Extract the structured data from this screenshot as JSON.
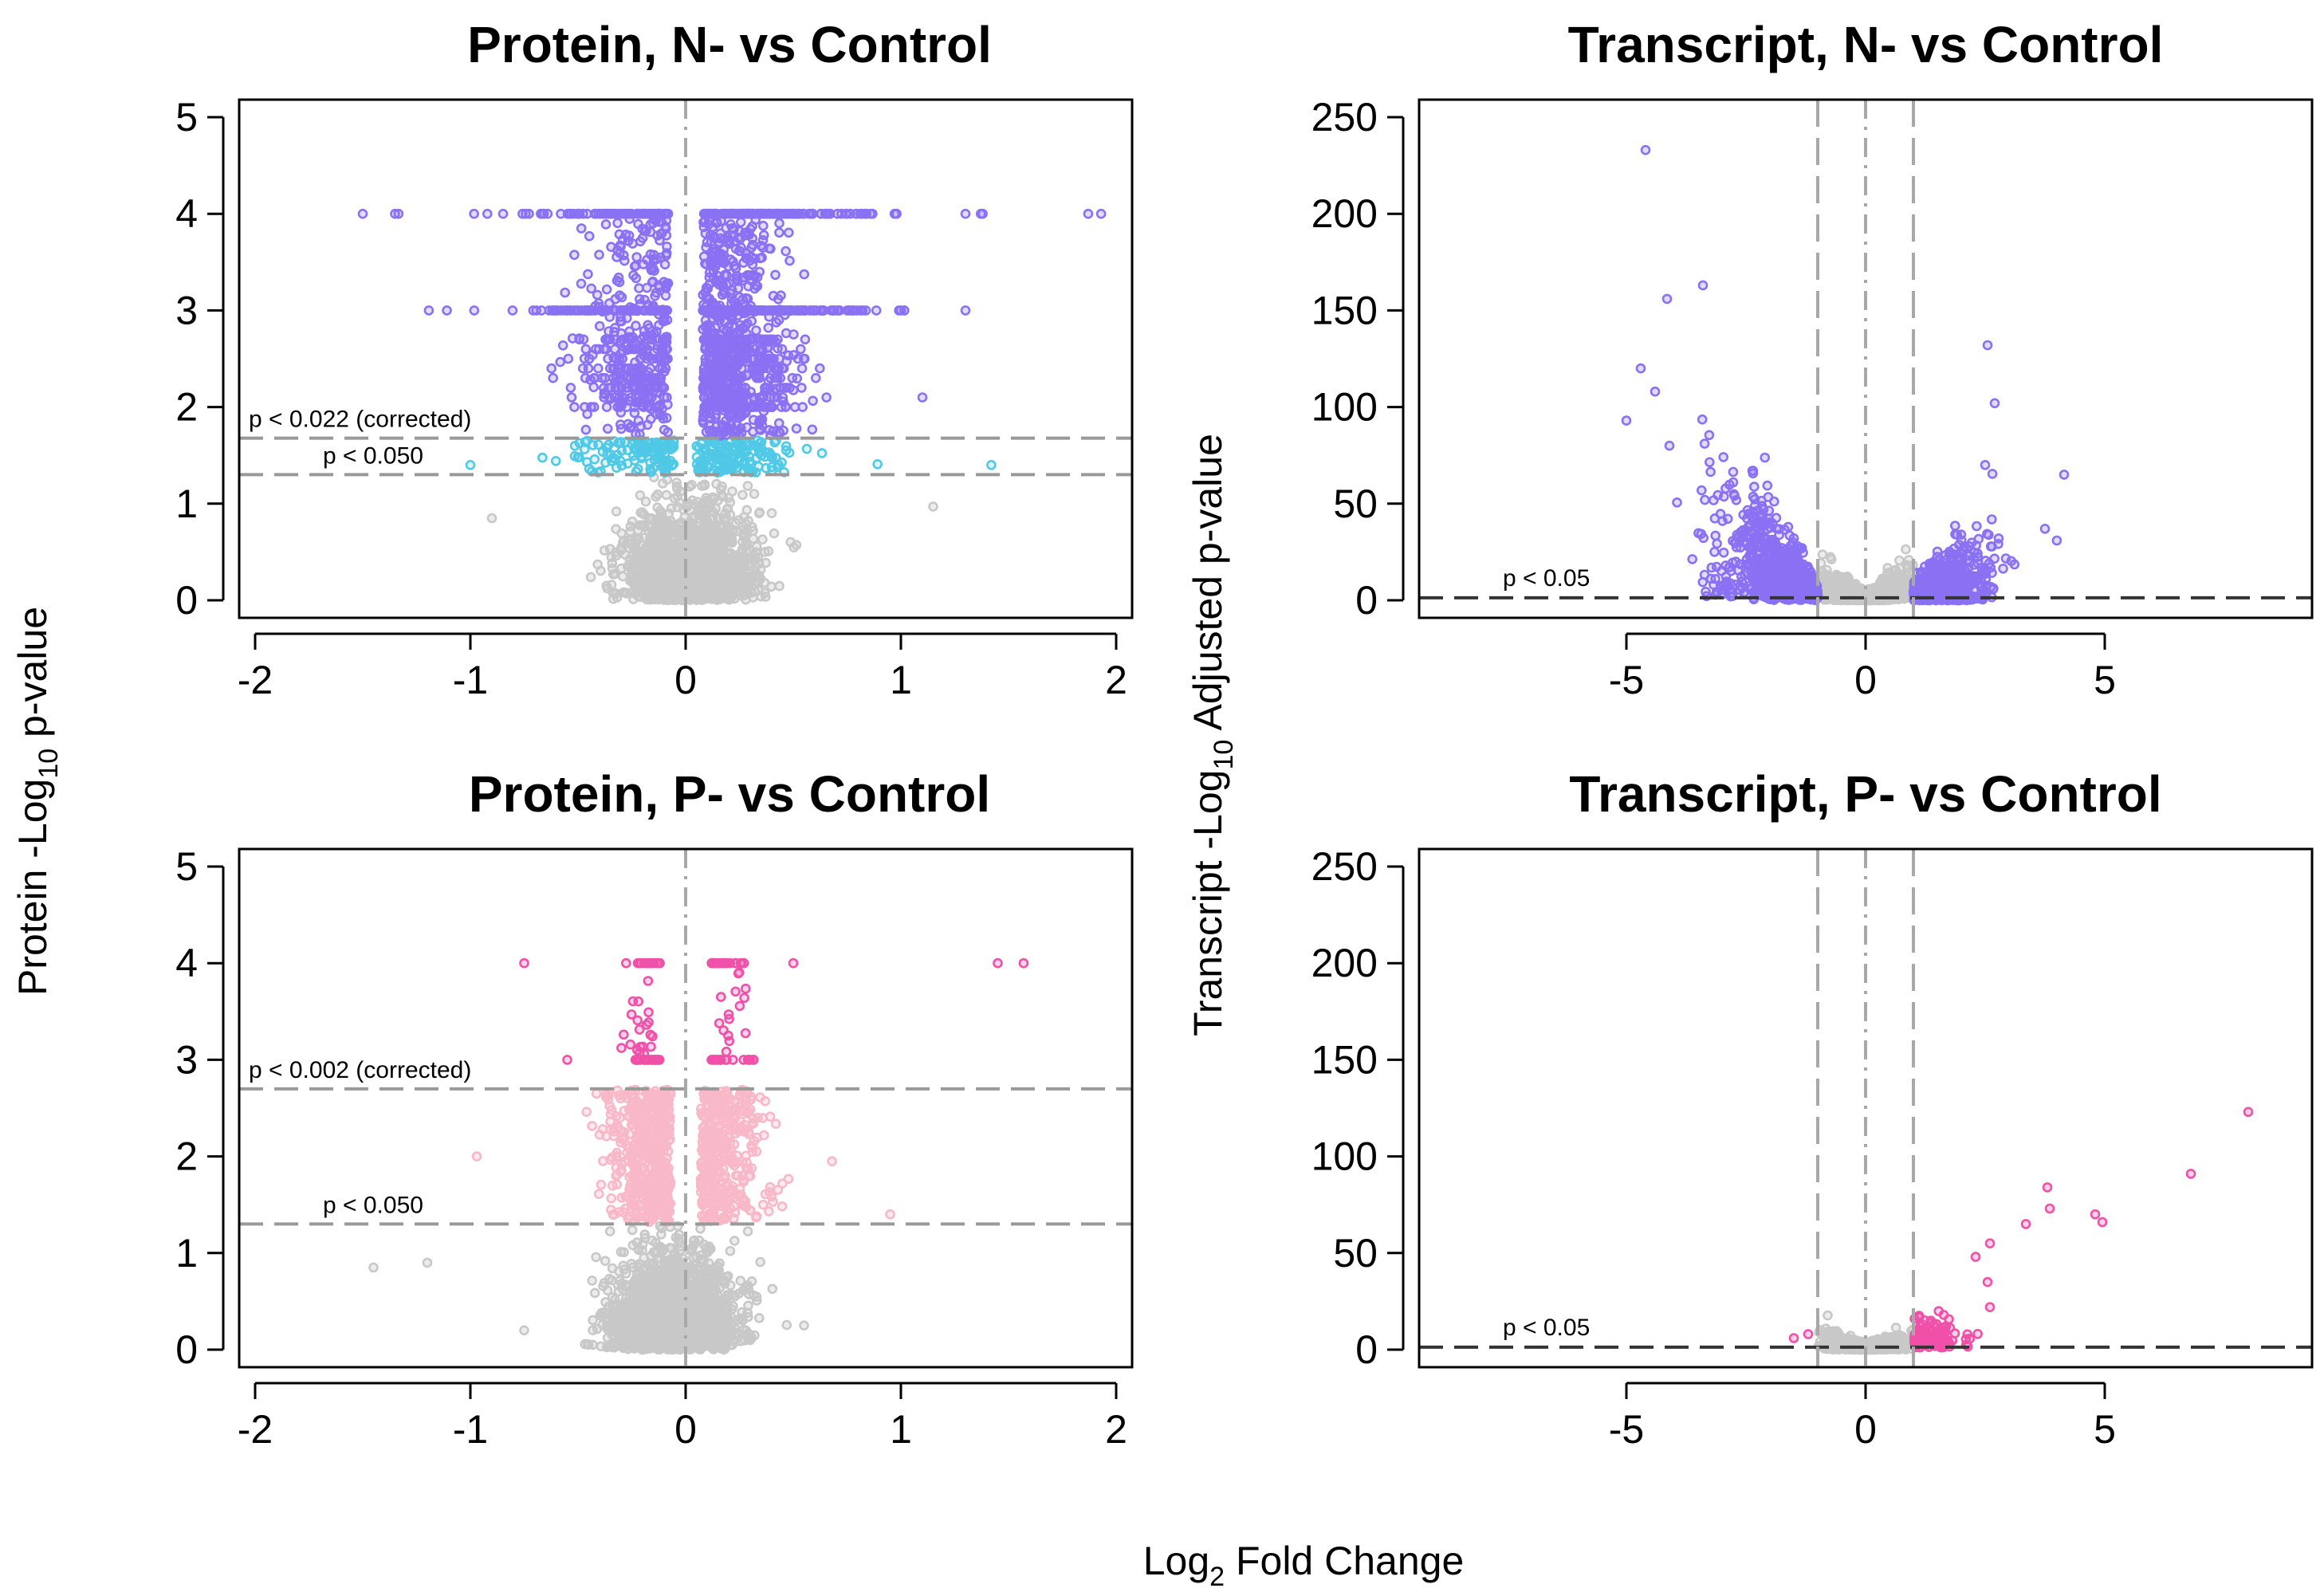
{
  "figure": {
    "shared_ylabel_left": {
      "main": "Protein -Log",
      "sub": "10",
      "rest": " p-value"
    },
    "shared_ylabel_right": {
      "main": "Transcript -Log",
      "sub": "10",
      "rest": " Adjusted p-value"
    },
    "shared_xlabel": {
      "main": "Log",
      "sub": "2",
      "rest": " Fold Change"
    }
  },
  "colors": {
    "purple": "#8a70f2",
    "cyan": "#4fc9e6",
    "gray": "#c8c8c8",
    "pink": "#f050a8",
    "lightpink": "#f8b8c8",
    "dashed_gray": "#999999"
  },
  "chart_data": [
    {
      "type": "scatter",
      "title": "Protein, N- vs Control",
      "xlim": [
        -2,
        2
      ],
      "ylim": [
        0,
        5
      ],
      "xticks": [
        "-2",
        "-1",
        "0",
        "1",
        "2"
      ],
      "yticks": [
        "0",
        "1",
        "2",
        "3",
        "4",
        "5"
      ],
      "thresholds": [
        {
          "y": 1.678,
          "label": "p < 0.022 (corrected)"
        },
        {
          "y": 1.301,
          "label": "p < 0.050"
        }
      ],
      "vlines": [
        {
          "x": 0,
          "style": "dashdot"
        }
      ],
      "groups": [
        {
          "name": "significant-corrected",
          "color": "purple",
          "density": "high",
          "y_range": [
            1.68,
            4.0
          ],
          "x_range": [
            -1.5,
            1.9
          ]
        },
        {
          "name": "significant-nominal",
          "color": "cyan",
          "y_range": [
            1.3,
            1.68
          ],
          "x_range": [
            -1.05,
            1.42
          ]
        },
        {
          "name": "not-significant",
          "color": "gray",
          "y_range": [
            0,
            1.3
          ],
          "x_range": [
            -0.9,
            1.15
          ]
        }
      ],
      "notable_points": [
        {
          "x": -1.5,
          "y": 4.0
        },
        {
          "x": -1.35,
          "y": 4.0
        },
        {
          "x": 1.87,
          "y": 4.0
        },
        {
          "x": 1.93,
          "y": 4.0
        },
        {
          "x": 1.3,
          "y": 4.0
        },
        {
          "x": 1.38,
          "y": 4.0
        },
        {
          "x": 1.3,
          "y": 3.0
        },
        {
          "x": 1.1,
          "y": 2.1
        },
        {
          "x": -1.0,
          "y": 1.4
        },
        {
          "x": 1.42,
          "y": 1.4
        },
        {
          "x": -0.9,
          "y": 0.85
        },
        {
          "x": 1.15,
          "y": 0.97
        }
      ]
    },
    {
      "type": "scatter",
      "title": "Transcript, N- vs Control",
      "xlim": [
        -9,
        9
      ],
      "ylim": [
        0,
        260
      ],
      "xticks": [
        "-5",
        "0",
        "5"
      ],
      "yticks": [
        "0",
        "50",
        "100",
        "150",
        "200",
        "250"
      ],
      "thresholds": [
        {
          "y": 1.3,
          "label": "p < 0.05"
        }
      ],
      "vlines": [
        {
          "x": -1,
          "style": "dashed"
        },
        {
          "x": 0,
          "style": "dashdot"
        },
        {
          "x": 1,
          "style": "dashed"
        }
      ],
      "groups": [
        {
          "name": "significant",
          "color": "purple",
          "y_range": [
            0,
            235
          ],
          "x_range": [
            -5.0,
            4.2
          ]
        },
        {
          "name": "not-significant",
          "color": "gray",
          "y_range": [
            0,
            30
          ],
          "x_range": [
            -1.0,
            1.0
          ]
        }
      ],
      "notable_points": [
        {
          "x": -4.6,
          "y": 233
        },
        {
          "x": -3.4,
          "y": 163
        },
        {
          "x": -4.15,
          "y": 156
        },
        {
          "x": -5.0,
          "y": 93
        },
        {
          "x": -4.7,
          "y": 120
        },
        {
          "x": -4.4,
          "y": 108
        },
        {
          "x": -4.1,
          "y": 80
        },
        {
          "x": 2.55,
          "y": 132
        },
        {
          "x": 2.7,
          "y": 102
        },
        {
          "x": 4.15,
          "y": 65
        },
        {
          "x": 3.75,
          "y": 37
        },
        {
          "x": 2.5,
          "y": 70
        }
      ]
    },
    {
      "type": "scatter",
      "title": "Protein, P- vs Control",
      "xlim": [
        -2,
        2
      ],
      "ylim": [
        0,
        5
      ],
      "xticks": [
        "-2",
        "-1",
        "0",
        "1",
        "2"
      ],
      "yticks": [
        "0",
        "1",
        "2",
        "3",
        "4",
        "5"
      ],
      "thresholds": [
        {
          "y": 2.699,
          "label": "p < 0.002 (corrected)"
        },
        {
          "y": 1.301,
          "label": "p < 0.050"
        }
      ],
      "vlines": [
        {
          "x": 0,
          "style": "dashdot"
        }
      ],
      "groups": [
        {
          "name": "significant-corrected",
          "color": "pink",
          "y_range": [
            3.0,
            4.0
          ],
          "x_range": [
            -0.75,
            1.6
          ]
        },
        {
          "name": "significant-nominal",
          "color": "lightpink",
          "density": "high",
          "y_range": [
            1.3,
            2.7
          ],
          "x_range": [
            -0.97,
            0.95
          ]
        },
        {
          "name": "not-significant",
          "color": "gray",
          "y_range": [
            0,
            1.3
          ],
          "x_range": [
            -1.45,
            0.6
          ]
        }
      ],
      "notable_points": [
        {
          "x": 1.45,
          "y": 4.0
        },
        {
          "x": 1.57,
          "y": 4.0
        },
        {
          "x": -0.75,
          "y": 4.0
        },
        {
          "x": -0.55,
          "y": 3.0
        },
        {
          "x": 0.5,
          "y": 4.0
        },
        {
          "x": -0.97,
          "y": 2.0
        },
        {
          "x": 0.68,
          "y": 1.95
        },
        {
          "x": 0.95,
          "y": 1.4
        },
        {
          "x": -1.45,
          "y": 0.85
        },
        {
          "x": -1.2,
          "y": 0.9
        },
        {
          "x": -0.75,
          "y": 0.2
        },
        {
          "x": 0.55,
          "y": 0.25
        }
      ]
    },
    {
      "type": "scatter",
      "title": "Transcript, P- vs Control",
      "xlim": [
        -9,
        9
      ],
      "ylim": [
        0,
        260
      ],
      "xticks": [
        "-5",
        "0",
        "5"
      ],
      "yticks": [
        "0",
        "50",
        "100",
        "150",
        "200",
        "250"
      ],
      "thresholds": [
        {
          "y": 1.3,
          "label": "p < 0.05"
        }
      ],
      "vlines": [
        {
          "x": -1,
          "style": "dashed"
        },
        {
          "x": 0,
          "style": "dashdot"
        },
        {
          "x": 1,
          "style": "dashed"
        }
      ],
      "groups": [
        {
          "name": "significant",
          "color": "pink",
          "y_range": [
            0,
            124
          ],
          "x_range": [
            -1.5,
            8.0
          ]
        },
        {
          "name": "not-significant",
          "color": "gray",
          "y_range": [
            0,
            36
          ],
          "x_range": [
            -1.0,
            1.0
          ]
        }
      ],
      "notable_points": [
        {
          "x": 8.0,
          "y": 123
        },
        {
          "x": 6.8,
          "y": 91
        },
        {
          "x": 3.8,
          "y": 84
        },
        {
          "x": 4.8,
          "y": 70
        },
        {
          "x": 4.95,
          "y": 66
        },
        {
          "x": 3.35,
          "y": 65
        },
        {
          "x": 3.85,
          "y": 73
        },
        {
          "x": 2.6,
          "y": 55
        },
        {
          "x": 2.3,
          "y": 48
        },
        {
          "x": 2.55,
          "y": 35
        },
        {
          "x": 2.6,
          "y": 22
        },
        {
          "x": -1.2,
          "y": 8
        },
        {
          "x": -1.5,
          "y": 6
        }
      ]
    }
  ]
}
